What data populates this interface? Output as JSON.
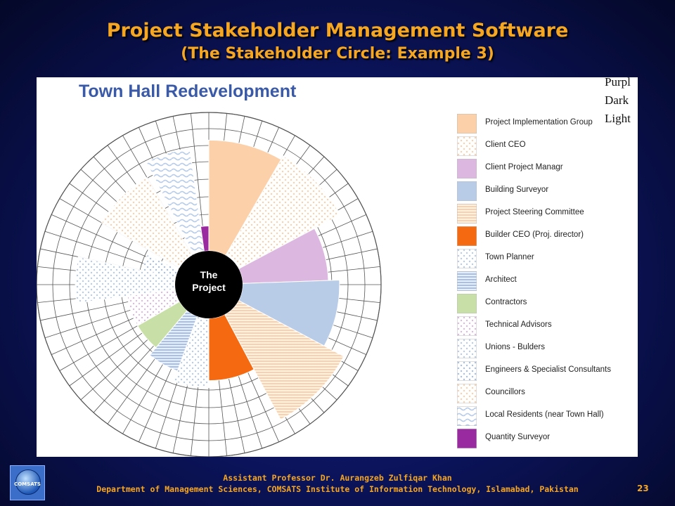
{
  "slide": {
    "title": "Project Stakeholder Management Software",
    "subtitle": "(The Stakeholder Circle: Example 3)",
    "footer_line1": "Assistant Professor Dr. Aurangzeb Zulfiqar Khan",
    "footer_line2": "Department of Management Sciences, COMSATS Institute of Information Technology, Islamabad, Pakistan",
    "page_number": "23",
    "logo_text": "COMSATS"
  },
  "figure": {
    "title": "Town Hall Redevelopment",
    "center_label_1": "The",
    "center_label_2": "Project",
    "corner_text": [
      "Purpl",
      "Dark",
      "Light"
    ],
    "legend": [
      {
        "label": "Project Implementation Group",
        "color": "#fcd0a8",
        "pattern": "solid"
      },
      {
        "label": "Client CEO",
        "color": "#fcd0a8",
        "pattern": "dots"
      },
      {
        "label": "Client Project Managr",
        "color": "#dcb8e0",
        "pattern": "solid"
      },
      {
        "label": "Building Surveyor",
        "color": "#b8cce8",
        "pattern": "solid"
      },
      {
        "label": "Project Steering Committee",
        "color": "#fcd0a8",
        "pattern": "hlines"
      },
      {
        "label": "Builder CEO (Proj. director)",
        "color": "#f56a10",
        "pattern": "solid"
      },
      {
        "label": "Town Planner",
        "color": "#b8cce8",
        "pattern": "dots"
      },
      {
        "label": "Architect",
        "color": "#a8c0e8",
        "pattern": "hlines"
      },
      {
        "label": "Contractors",
        "color": "#c8e0a8",
        "pattern": "solid"
      },
      {
        "label": "Technical Advisors",
        "color": "#dcb8e0",
        "pattern": "dots"
      },
      {
        "label": "Unions - Bulders",
        "color": "#b8cce8",
        "pattern": "dots"
      },
      {
        "label": "Engineers & Specialist Consultants",
        "color": "#a8c0e8",
        "pattern": "dots"
      },
      {
        "label": "Councillors",
        "color": "#fcd0a8",
        "pattern": "dots"
      },
      {
        "label": "Local Residents (near Town Hall)",
        "color": "#b8cce8",
        "pattern": "waves"
      },
      {
        "label": "Quantity Surveyor",
        "color": "#9a2aa0",
        "pattern": "solid"
      }
    ],
    "wedges": [
      {
        "stakeholder": "Project Implementation Group",
        "start_deg": 0,
        "end_deg": 30,
        "fill_fraction": 0.8
      },
      {
        "stakeholder": "Client CEO",
        "start_deg": 30,
        "end_deg": 62,
        "fill_fraction": 0.83
      },
      {
        "stakeholder": "Client Project Managr",
        "start_deg": 62,
        "end_deg": 88,
        "fill_fraction": 0.62
      },
      {
        "stakeholder": "Building Surveyor",
        "start_deg": 88,
        "end_deg": 118,
        "fill_fraction": 0.7
      },
      {
        "stakeholder": "Project Steering Committee",
        "start_deg": 118,
        "end_deg": 152,
        "fill_fraction": 0.86
      },
      {
        "stakeholder": "Builder CEO (Proj. director)",
        "start_deg": 152,
        "end_deg": 180,
        "fill_fraction": 0.45
      },
      {
        "stakeholder": "Town Planner",
        "start_deg": 180,
        "end_deg": 200,
        "fill_fraction": 0.5
      },
      {
        "stakeholder": "Architect",
        "start_deg": 200,
        "end_deg": 220,
        "fill_fraction": 0.42
      },
      {
        "stakeholder": "Contractors",
        "start_deg": 220,
        "end_deg": 240,
        "fill_fraction": 0.35
      },
      {
        "stakeholder": "Technical Advisors",
        "start_deg": 240,
        "end_deg": 262,
        "fill_fraction": 0.35
      },
      {
        "stakeholder": "Unions - Bulders",
        "start_deg": 262,
        "end_deg": 282,
        "fill_fraction": 0.72
      },
      {
        "stakeholder": "Engineers & Specialist Consultants",
        "start_deg": 282,
        "end_deg": 296,
        "fill_fraction": 0.25
      },
      {
        "stakeholder": "Councillors",
        "start_deg": 300,
        "end_deg": 330,
        "fill_fraction": 0.65
      },
      {
        "stakeholder": "Local Residents (near Town Hall)",
        "start_deg": 333,
        "end_deg": 352,
        "fill_fraction": 0.75
      },
      {
        "stakeholder": "Quantity Surveyor",
        "start_deg": 352,
        "end_deg": 360,
        "fill_fraction": 0.18
      }
    ]
  }
}
